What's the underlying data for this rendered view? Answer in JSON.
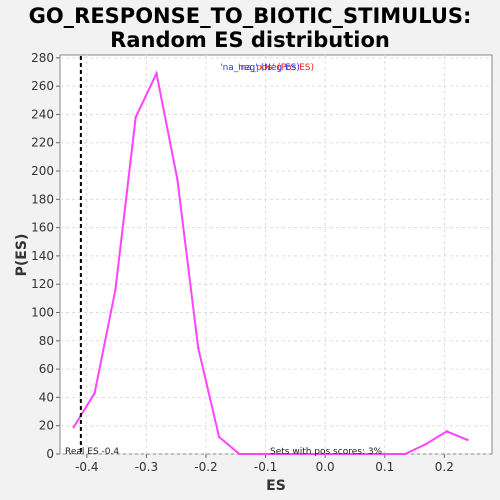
{
  "chart_data": {
    "type": "line",
    "title": "GO_RESPONSE_TO_BIOTIC_STIMULUS:",
    "subtitle": "Random ES distribution",
    "xlabel": "ES",
    "ylabel": "P(ES)",
    "xlim": [
      -0.445,
      0.28
    ],
    "ylim": [
      0,
      282
    ],
    "x_ticks": [
      "-0.4",
      "-0.3",
      "-0.2",
      "-0.1",
      "0.0",
      "0.1",
      "0.2"
    ],
    "x_tick_values": [
      -0.4,
      -0.3,
      -0.2,
      -0.1,
      0.0,
      0.1,
      0.2
    ],
    "y_ticks": [
      "0",
      "20",
      "40",
      "60",
      "80",
      "100",
      "120",
      "140",
      "160",
      "180",
      "200",
      "220",
      "240",
      "260",
      "280"
    ],
    "y_tick_values": [
      0,
      20,
      40,
      60,
      80,
      100,
      120,
      140,
      160,
      180,
      200,
      220,
      240,
      260,
      280
    ],
    "grid": true,
    "series": [
      {
        "color": "#ff44ff",
        "x": [
          -0.422,
          -0.387,
          -0.352,
          -0.318,
          -0.283,
          -0.248,
          -0.213,
          -0.178,
          -0.144,
          -0.109,
          -0.074,
          -0.039,
          -0.005,
          0.03,
          0.065,
          0.1,
          0.134,
          0.169,
          0.204,
          0.239
        ],
        "y": [
          19,
          43,
          116,
          238,
          269,
          194,
          75,
          12,
          0,
          0,
          0,
          0,
          0,
          0,
          0,
          0,
          0,
          7,
          16,
          10
        ]
      }
    ],
    "real_es": {
      "value": -0.41,
      "label": "Real ES -0.4"
    },
    "legend": {
      "neg_text": "'na_neg' (Neg ES)",
      "neg_color": "#3030ff",
      "pos_text": "'na_pos' (Pos ES)",
      "pos_color": "#ff2020",
      "position": "top-center"
    },
    "annotation": "Sets with pos scores: 3%"
  }
}
